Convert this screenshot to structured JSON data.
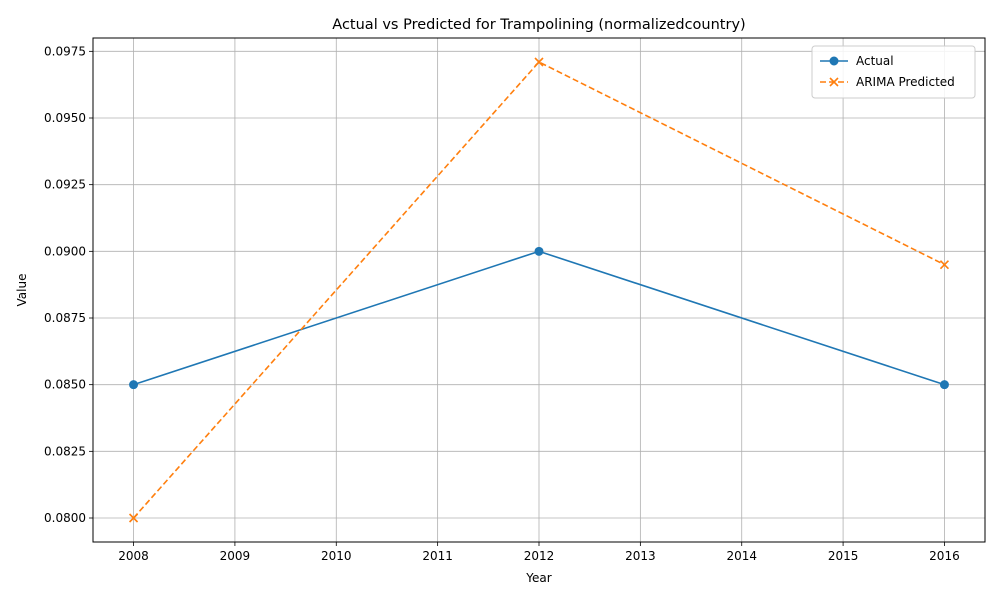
{
  "chart_data": {
    "type": "line",
    "title": "Actual vs Predicted for Trampolining (normalizedcountry)",
    "xlabel": "Year",
    "ylabel": "Value",
    "x": [
      2008,
      2012,
      2016
    ],
    "xticks": [
      "2008",
      "2009",
      "2010",
      "2011",
      "2012",
      "2013",
      "2014",
      "2015",
      "2016"
    ],
    "yticks": [
      "0.0800",
      "0.0825",
      "0.0850",
      "0.0875",
      "0.0900",
      "0.0925",
      "0.0950",
      "0.0975"
    ],
    "xlim": [
      2007.6,
      2016.4
    ],
    "ylim": [
      0.0791,
      0.098
    ],
    "grid": true,
    "legend_position": "top-right",
    "series": [
      {
        "name": "Actual",
        "values": [
          0.085,
          0.09,
          0.085
        ],
        "color": "#1f77b4",
        "marker": "circle",
        "linestyle": "solid"
      },
      {
        "name": "ARIMA Predicted",
        "values": [
          0.08,
          0.0971,
          0.0895
        ],
        "color": "#ff7f0e",
        "marker": "x",
        "linestyle": "dashed"
      }
    ]
  }
}
